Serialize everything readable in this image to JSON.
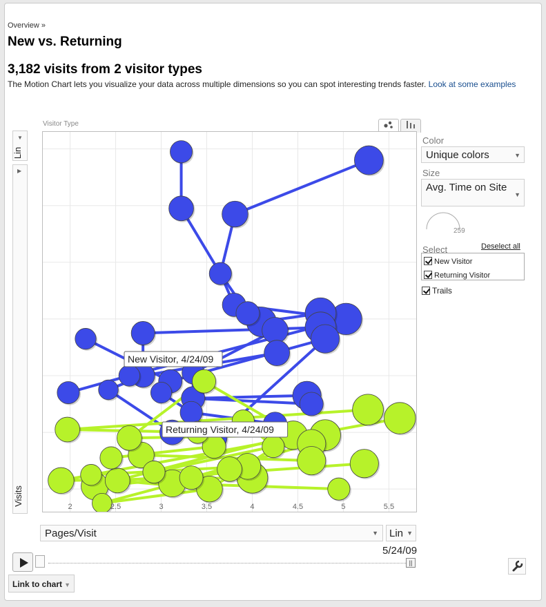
{
  "header": {
    "breadcrumb": "Overview »",
    "title": "New vs. Returning",
    "subtitle": "3,182 visits from 2 visitor types",
    "description": "The Motion Chart lets you visualize your data across multiple dimensions so you can spot interesting trends faster.",
    "link_text": "Look at some examples"
  },
  "controls": {
    "series_caption": "Visitor Type",
    "y_scale": "Lin",
    "y_metric": "Visits",
    "x_metric": "Pages/Visit",
    "x_scale": "Lin",
    "date": "5/24/09",
    "link_to_chart": "Link to chart",
    "color_label": "Color",
    "color_value": "Unique colors",
    "size_label": "Size",
    "size_value": "Avg. Time on Site",
    "size_max": "259",
    "select_label": "Select",
    "deselect_all": "Deselect all",
    "trails_label": "Trails"
  },
  "colors": {
    "new_visitor": "#3c4ae8",
    "returning_visitor": "#b7f22a",
    "grid": "#e8e8e8"
  },
  "chart_data": {
    "type": "scatter",
    "title": "",
    "xlabel": "Pages/Visit",
    "ylabel": "Visits",
    "xlim": [
      1.7,
      5.8
    ],
    "ylim": [
      12,
      146
    ],
    "xticks": [
      2,
      2.5,
      3,
      3.5,
      4,
      4.5,
      5,
      5.5
    ],
    "yticks": [
      20,
      40,
      60,
      80,
      100,
      120,
      140
    ],
    "grid": true,
    "trails": true,
    "series": [
      {
        "name": "New Visitor",
        "color": "#3c4ae8",
        "tooltip": "New Visitor, 4/24/09",
        "points": [
          {
            "x": 3.22,
            "y": 139,
            "s": 0.45
          },
          {
            "x": 5.28,
            "y": 136,
            "s": 0.72
          },
          {
            "x": 3.22,
            "y": 119,
            "s": 0.55
          },
          {
            "x": 3.81,
            "y": 117,
            "s": 0.6
          },
          {
            "x": 3.65,
            "y": 96,
            "s": 0.45
          },
          {
            "x": 3.8,
            "y": 85,
            "s": 0.5
          },
          {
            "x": 3.95,
            "y": 82,
            "s": 0.5
          },
          {
            "x": 4.1,
            "y": 79,
            "s": 0.75
          },
          {
            "x": 4.75,
            "y": 82,
            "s": 0.8
          },
          {
            "x": 5.03,
            "y": 80,
            "s": 0.82
          },
          {
            "x": 4.75,
            "y": 77,
            "s": 0.8
          },
          {
            "x": 4.8,
            "y": 73,
            "s": 0.7
          },
          {
            "x": 4.25,
            "y": 76,
            "s": 0.6
          },
          {
            "x": 2.8,
            "y": 75,
            "s": 0.5
          },
          {
            "x": 2.17,
            "y": 73,
            "s": 0.4
          },
          {
            "x": 4.27,
            "y": 68,
            "s": 0.58
          },
          {
            "x": 2.65,
            "y": 60,
            "s": 0.4
          },
          {
            "x": 2.8,
            "y": 60,
            "s": 0.5
          },
          {
            "x": 3.1,
            "y": 58,
            "s": 0.5
          },
          {
            "x": 3.35,
            "y": 61,
            "s": 0.45
          },
          {
            "x": 1.98,
            "y": 54,
            "s": 0.45
          },
          {
            "x": 2.42,
            "y": 55,
            "s": 0.35
          },
          {
            "x": 3.0,
            "y": 54,
            "s": 0.4
          },
          {
            "x": 3.35,
            "y": 52,
            "s": 0.5
          },
          {
            "x": 3.33,
            "y": 47,
            "s": 0.45
          },
          {
            "x": 4.6,
            "y": 53,
            "s": 0.7
          },
          {
            "x": 4.65,
            "y": 50,
            "s": 0.5
          },
          {
            "x": 4.25,
            "y": 43,
            "s": 0.5
          },
          {
            "x": 3.12,
            "y": 40,
            "s": 0.55
          },
          {
            "x": 3.6,
            "y": 38,
            "s": 0.45
          }
        ],
        "trails": [
          [
            0,
            2
          ],
          [
            2,
            4
          ],
          [
            3,
            4
          ],
          [
            1,
            3
          ],
          [
            4,
            5
          ],
          [
            4,
            6
          ],
          [
            5,
            7
          ],
          [
            7,
            8
          ],
          [
            7,
            12
          ],
          [
            8,
            10
          ],
          [
            5,
            9
          ],
          [
            9,
            16
          ],
          [
            10,
            13
          ],
          [
            11,
            18
          ],
          [
            12,
            19
          ],
          [
            13,
            17
          ],
          [
            14,
            18
          ],
          [
            16,
            20
          ],
          [
            17,
            21
          ],
          [
            18,
            22
          ],
          [
            19,
            23
          ],
          [
            23,
            25
          ],
          [
            22,
            24
          ],
          [
            24,
            27
          ],
          [
            21,
            28
          ],
          [
            23,
            26
          ],
          [
            15,
            17
          ],
          [
            11,
            29
          ]
        ]
      },
      {
        "name": "Returning Visitor",
        "color": "#b7f22a",
        "tooltip": "Returning Visitor, 4/24/09",
        "points": [
          {
            "x": 1.9,
            "y": 23,
            "s": 0.6
          },
          {
            "x": 2.23,
            "y": 25,
            "s": 0.4
          },
          {
            "x": 2.27,
            "y": 21,
            "s": 0.65
          },
          {
            "x": 2.35,
            "y": 15,
            "s": 0.35
          },
          {
            "x": 2.45,
            "y": 31,
            "s": 0.45
          },
          {
            "x": 2.52,
            "y": 23,
            "s": 0.55
          },
          {
            "x": 2.65,
            "y": 38,
            "s": 0.55
          },
          {
            "x": 2.78,
            "y": 32,
            "s": 0.6
          },
          {
            "x": 2.92,
            "y": 26,
            "s": 0.45
          },
          {
            "x": 1.97,
            "y": 41,
            "s": 0.55
          },
          {
            "x": 3.12,
            "y": 22,
            "s": 0.65
          },
          {
            "x": 3.33,
            "y": 24,
            "s": 0.5
          },
          {
            "x": 3.53,
            "y": 20,
            "s": 0.6
          },
          {
            "x": 3.58,
            "y": 35,
            "s": 0.5
          },
          {
            "x": 3.75,
            "y": 27,
            "s": 0.55
          },
          {
            "x": 3.95,
            "y": 28,
            "s": 0.6
          },
          {
            "x": 4.0,
            "y": 24,
            "s": 0.8
          },
          {
            "x": 4.23,
            "y": 35,
            "s": 0.45
          },
          {
            "x": 4.45,
            "y": 39,
            "s": 0.7
          },
          {
            "x": 4.65,
            "y": 36,
            "s": 0.7
          },
          {
            "x": 4.8,
            "y": 39,
            "s": 0.8
          },
          {
            "x": 4.65,
            "y": 30,
            "s": 0.7
          },
          {
            "x": 4.95,
            "y": 20,
            "s": 0.45
          },
          {
            "x": 5.23,
            "y": 29,
            "s": 0.7
          },
          {
            "x": 5.27,
            "y": 48,
            "s": 0.8
          },
          {
            "x": 5.62,
            "y": 45,
            "s": 0.82
          },
          {
            "x": 3.47,
            "y": 58,
            "s": 0.5
          },
          {
            "x": 3.4,
            "y": 40,
            "s": 0.45
          },
          {
            "x": 3.9,
            "y": 44,
            "s": 0.45
          }
        ],
        "trails": [
          [
            0,
            16
          ],
          [
            0,
            25
          ],
          [
            9,
            24
          ],
          [
            9,
            20
          ],
          [
            2,
            18
          ],
          [
            5,
            23
          ],
          [
            3,
            14
          ],
          [
            3,
            12
          ],
          [
            1,
            15
          ],
          [
            4,
            13
          ],
          [
            6,
            18
          ],
          [
            7,
            21
          ],
          [
            8,
            17
          ],
          [
            10,
            22
          ],
          [
            11,
            19
          ],
          [
            12,
            18
          ],
          [
            26,
            19
          ],
          [
            27,
            20
          ],
          [
            28,
            17
          ],
          [
            6,
            26
          ],
          [
            10,
            15
          ],
          [
            2,
            11
          ],
          [
            5,
            12
          ]
        ]
      }
    ]
  }
}
